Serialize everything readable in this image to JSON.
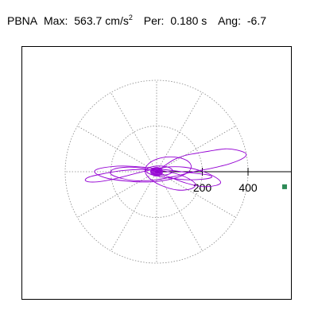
{
  "header": {
    "station": "PBNA",
    "max_label": "Max:",
    "max_value": "563.7",
    "max_unit_base": "cm/s",
    "max_unit_exp": "2",
    "per_label": "Per:",
    "per_value": "0.180 s",
    "ang_label": "Ang:",
    "ang_value": "-6.7"
  },
  "chart_data": {
    "type": "polar-trace",
    "max_amplitude": 563.7,
    "period_s": 0.18,
    "angle_deg": -6.7,
    "tick_values": [
      200,
      400
    ],
    "tick_labels": [
      "200",
      "400"
    ],
    "grid_radii": [
      200,
      400
    ],
    "radial_spokes_deg": [
      0,
      30,
      60,
      90,
      120,
      150,
      180,
      210,
      240,
      270,
      300,
      330
    ],
    "trace_color": "#9400d3",
    "marker_color": "#2e8b57",
    "grid_color": "#888888",
    "trace": [
      [
        0,
        0
      ],
      [
        40,
        30
      ],
      [
        80,
        55
      ],
      [
        120,
        70
      ],
      [
        170,
        80
      ],
      [
        230,
        90
      ],
      [
        300,
        100
      ],
      [
        350,
        95
      ],
      [
        390,
        80
      ],
      [
        380,
        60
      ],
      [
        320,
        35
      ],
      [
        240,
        15
      ],
      [
        160,
        0
      ],
      [
        80,
        -20
      ],
      [
        0,
        -35
      ],
      [
        -80,
        -40
      ],
      [
        -150,
        -30
      ],
      [
        -200,
        -10
      ],
      [
        -190,
        10
      ],
      [
        -130,
        20
      ],
      [
        -60,
        15
      ],
      [
        0,
        0
      ],
      [
        60,
        -25
      ],
      [
        130,
        -50
      ],
      [
        200,
        -65
      ],
      [
        260,
        -60
      ],
      [
        280,
        -45
      ],
      [
        250,
        -20
      ],
      [
        190,
        5
      ],
      [
        120,
        20
      ],
      [
        40,
        20
      ],
      [
        -40,
        5
      ],
      [
        -120,
        -15
      ],
      [
        -200,
        -35
      ],
      [
        -270,
        -45
      ],
      [
        -310,
        -40
      ],
      [
        -300,
        -25
      ],
      [
        -240,
        -10
      ],
      [
        -150,
        5
      ],
      [
        -60,
        10
      ],
      [
        20,
        5
      ],
      [
        90,
        -10
      ],
      [
        140,
        -30
      ],
      [
        170,
        -55
      ],
      [
        150,
        -75
      ],
      [
        90,
        -80
      ],
      [
        20,
        -60
      ],
      [
        -30,
        -30
      ],
      [
        -50,
        0
      ],
      [
        -40,
        30
      ],
      [
        0,
        55
      ],
      [
        60,
        65
      ],
      [
        120,
        55
      ],
      [
        150,
        30
      ],
      [
        140,
        0
      ],
      [
        90,
        -25
      ],
      [
        20,
        -40
      ],
      [
        -60,
        -45
      ],
      [
        -140,
        -40
      ],
      [
        -210,
        -30
      ],
      [
        -260,
        -12
      ],
      [
        -270,
        5
      ],
      [
        -230,
        18
      ],
      [
        -150,
        25
      ],
      [
        -60,
        20
      ],
      [
        30,
        10
      ],
      [
        110,
        0
      ],
      [
        180,
        -8
      ],
      [
        230,
        -15
      ],
      [
        240,
        -25
      ],
      [
        200,
        -33
      ],
      [
        130,
        -35
      ],
      [
        60,
        -28
      ],
      [
        0,
        -18
      ],
      [
        -40,
        -5
      ],
      [
        -45,
        10
      ],
      [
        -20,
        22
      ],
      [
        20,
        25
      ],
      [
        55,
        18
      ],
      [
        70,
        5
      ],
      [
        60,
        -8
      ],
      [
        30,
        -15
      ],
      [
        0,
        -12
      ],
      [
        -20,
        -5
      ],
      [
        -25,
        5
      ],
      [
        -15,
        12
      ],
      [
        0,
        14
      ],
      [
        12,
        9
      ],
      [
        15,
        2
      ],
      [
        8,
        -4
      ],
      [
        0,
        -6
      ],
      [
        -6,
        -2
      ],
      [
        -4,
        3
      ],
      [
        0,
        4
      ],
      [
        3,
        1
      ],
      [
        0,
        0
      ]
    ],
    "end_point": [
      563.7,
      -6.7
    ]
  }
}
